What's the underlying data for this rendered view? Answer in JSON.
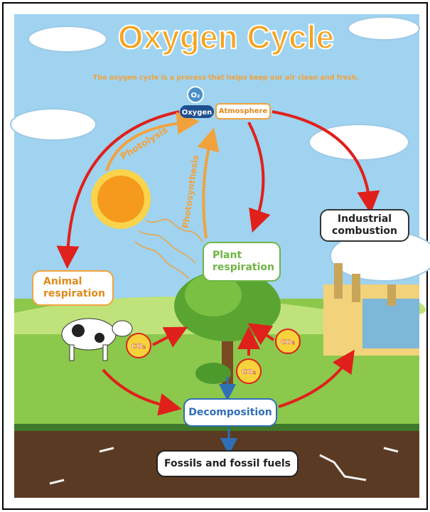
{
  "header": {
    "title": "Oxygen Cycle",
    "subtitle": "The oxygen cycle is a process that helps keep our air clean and fresh."
  },
  "badge": {
    "symbol": "O₂",
    "label": "Oxygen"
  },
  "nodes": [
    {
      "label": "Atmosphere"
    },
    {
      "label": "Industrial combustion"
    },
    {
      "label": "Plant respiration"
    },
    {
      "label": "Animal respiration"
    },
    {
      "label": "Decomposition"
    },
    {
      "label": "Fossils and fossil fuels"
    }
  ],
  "processes": [
    {
      "label": "Photolysis"
    },
    {
      "label": "Photosynthesis"
    }
  ],
  "co2_badges": [
    "CO₂",
    "CO₂",
    "CO₂"
  ]
}
